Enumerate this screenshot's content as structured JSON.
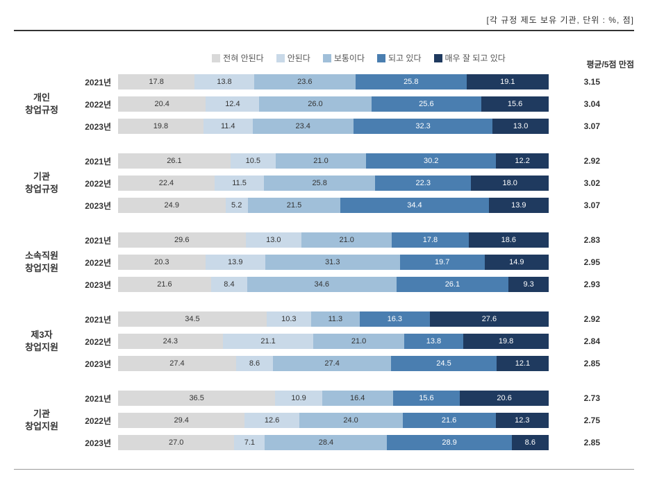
{
  "header_note": "[각 규정 제도 보유 기관, 단위 : %, 점]",
  "legend": [
    {
      "label": "전혀 안된다",
      "color": "#d9d9d9"
    },
    {
      "label": "안된다",
      "color": "#c9d9e8"
    },
    {
      "label": "보통이다",
      "color": "#a0bfd9"
    },
    {
      "label": "되고 있다",
      "color": "#4a7eb0"
    },
    {
      "label": "매우 잘 되고 있다",
      "color": "#1f3a5f"
    }
  ],
  "avg_header": "평균/5점 만점",
  "text_colors": {
    "light": "#333333",
    "dark": "#ffffff"
  },
  "seg_text_color_idx": [
    "light",
    "light",
    "light",
    "dark",
    "dark"
  ],
  "groups": [
    {
      "label": "개인\n창업규정",
      "rows": [
        {
          "year": "2021년",
          "values": [
            17.8,
            13.8,
            23.6,
            25.8,
            19.1
          ],
          "avg": "3.15"
        },
        {
          "year": "2022년",
          "values": [
            20.4,
            12.4,
            26.0,
            25.6,
            15.6
          ],
          "avg": "3.04"
        },
        {
          "year": "2023년",
          "values": [
            19.8,
            11.4,
            23.4,
            32.3,
            13.0
          ],
          "avg": "3.07"
        }
      ]
    },
    {
      "label": "기관\n창업규정",
      "rows": [
        {
          "year": "2021년",
          "values": [
            26.1,
            10.5,
            21.0,
            30.2,
            12.2
          ],
          "avg": "2.92"
        },
        {
          "year": "2022년",
          "values": [
            22.4,
            11.5,
            25.8,
            22.3,
            18.0
          ],
          "avg": "3.02"
        },
        {
          "year": "2023년",
          "values": [
            24.9,
            5.2,
            21.5,
            34.4,
            13.9
          ],
          "avg": "3.07"
        }
      ]
    },
    {
      "label": "소속직원\n창업지원",
      "rows": [
        {
          "year": "2021년",
          "values": [
            29.6,
            13.0,
            21.0,
            17.8,
            18.6
          ],
          "avg": "2.83"
        },
        {
          "year": "2022년",
          "values": [
            20.3,
            13.9,
            31.3,
            19.7,
            14.9
          ],
          "avg": "2.95"
        },
        {
          "year": "2023년",
          "values": [
            21.6,
            8.4,
            34.6,
            26.1,
            9.3
          ],
          "avg": "2.93"
        }
      ]
    },
    {
      "label": "제3자\n창업지원",
      "rows": [
        {
          "year": "2021년",
          "values": [
            34.5,
            10.3,
            11.3,
            16.3,
            27.6
          ],
          "avg": "2.92"
        },
        {
          "year": "2022년",
          "values": [
            24.3,
            21.1,
            21.0,
            13.8,
            19.8
          ],
          "avg": "2.84"
        },
        {
          "year": "2023년",
          "values": [
            27.4,
            8.6,
            27.4,
            24.5,
            12.1
          ],
          "avg": "2.85"
        }
      ]
    },
    {
      "label": "기관\n창업지원",
      "rows": [
        {
          "year": "2021년",
          "values": [
            36.5,
            10.9,
            16.4,
            15.6,
            20.6
          ],
          "avg": "2.73"
        },
        {
          "year": "2022년",
          "values": [
            29.4,
            12.6,
            24.0,
            21.6,
            12.3
          ],
          "avg": "2.75"
        },
        {
          "year": "2023년",
          "values": [
            27.0,
            7.1,
            28.4,
            28.9,
            8.6
          ],
          "avg": "2.85"
        }
      ]
    }
  ]
}
